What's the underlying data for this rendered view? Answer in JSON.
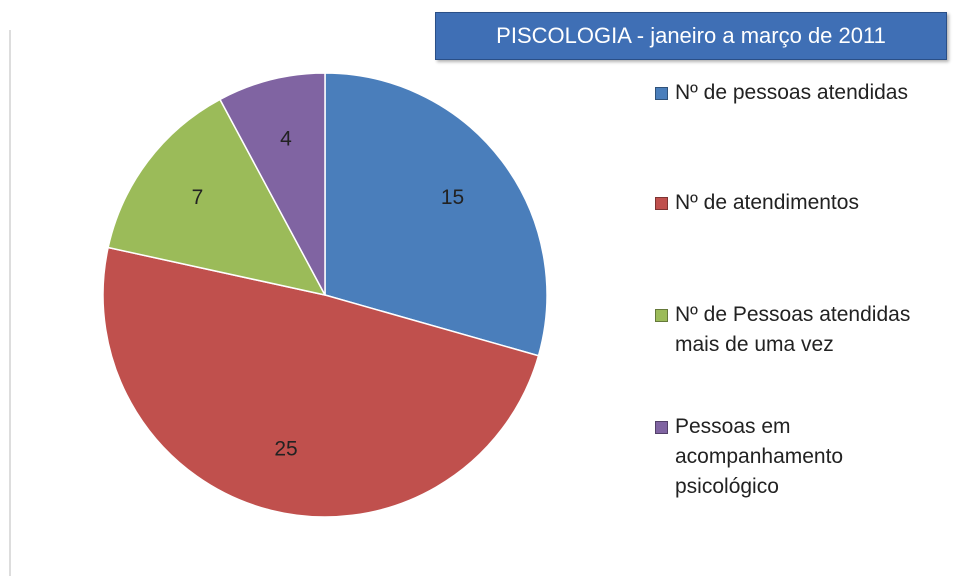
{
  "chart_data": {
    "type": "pie",
    "title": "PISCOLOGIA - janeiro a março de 2011",
    "categories": [
      "Nº de pessoas atendidas",
      "Nº de atendimentos",
      "Nº de Pessoas atendidas mais de uma vez",
      "Pessoas em acompanhamento psicológico"
    ],
    "values": [
      15,
      25,
      7,
      4
    ],
    "colors": [
      "#4a7ebb",
      "#c0504d",
      "#9bbb59",
      "#8064a2"
    ],
    "legend": "right"
  }
}
